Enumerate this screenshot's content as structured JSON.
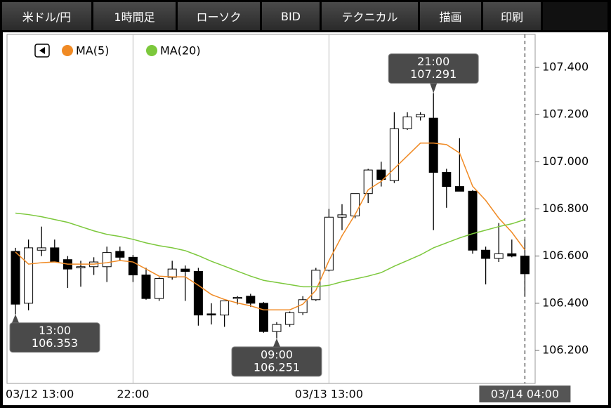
{
  "toolbar": {
    "buttons": [
      "米ドル/円",
      "1時間足",
      "ローソク",
      "BID",
      "テクニカル",
      "描画",
      "印刷"
    ]
  },
  "chart_data": {
    "type": "candlestick",
    "categories": [
      "03/12 13:00",
      null,
      null,
      null,
      null,
      null,
      null,
      null,
      null,
      "22:00",
      null,
      null,
      null,
      null,
      null,
      null,
      null,
      null,
      null,
      null,
      null,
      null,
      null,
      null,
      "03/13 13:00",
      null,
      null,
      null,
      null,
      null,
      null,
      null,
      null,
      null,
      null,
      null,
      null,
      null,
      null,
      "03/14 04:00"
    ],
    "open": [
      106.62,
      106.4,
      106.625,
      106.635,
      106.585,
      106.55,
      106.555,
      106.555,
      106.62,
      106.595,
      106.52,
      106.42,
      106.51,
      106.545,
      106.535,
      106.355,
      106.35,
      106.42,
      106.43,
      106.4,
      106.28,
      106.31,
      106.36,
      106.415,
      106.54,
      106.765,
      106.77,
      106.865,
      106.965,
      106.92,
      107.14,
      107.19,
      107.185,
      106.955,
      106.895,
      106.875,
      106.625,
      106.59,
      106.61,
      106.6
    ],
    "high": [
      106.635,
      106.67,
      106.725,
      106.67,
      106.6,
      106.58,
      106.595,
      106.64,
      106.64,
      106.605,
      106.55,
      106.51,
      106.58,
      106.56,
      106.55,
      106.4,
      106.41,
      106.43,
      106.44,
      106.405,
      106.32,
      106.365,
      106.43,
      106.55,
      106.8,
      106.82,
      106.865,
      106.97,
      107.0,
      107.21,
      107.21,
      107.21,
      107.291,
      106.97,
      107.1,
      106.88,
      106.64,
      106.74,
      106.67,
      106.67
    ],
    "low": [
      106.353,
      106.37,
      106.6,
      106.575,
      106.465,
      106.47,
      106.52,
      106.49,
      106.58,
      106.49,
      106.415,
      106.41,
      106.5,
      106.41,
      106.305,
      106.31,
      106.3,
      106.395,
      106.385,
      106.275,
      106.251,
      106.3,
      106.35,
      106.41,
      106.535,
      106.71,
      106.76,
      106.825,
      106.895,
      106.91,
      107.135,
      107.175,
      106.71,
      106.805,
      106.875,
      106.61,
      106.48,
      106.575,
      106.595,
      106.43
    ],
    "close": [
      106.396,
      106.635,
      106.635,
      106.575,
      106.545,
      106.555,
      106.575,
      106.615,
      106.595,
      106.52,
      106.42,
      106.505,
      106.545,
      106.535,
      106.35,
      106.35,
      106.41,
      106.425,
      106.4,
      106.28,
      106.31,
      106.36,
      106.415,
      106.54,
      106.765,
      106.775,
      106.865,
      106.965,
      106.925,
      107.14,
      107.19,
      107.2,
      106.955,
      106.895,
      106.875,
      106.625,
      106.59,
      106.61,
      106.6,
      106.525
    ],
    "up_color": "#ffffff",
    "down_color": "#000000",
    "series": [
      {
        "name": "MA(5)",
        "color": "#f08a24",
        "values": [
          106.617,
          106.566,
          106.572,
          106.575,
          106.566,
          106.566,
          106.566,
          106.572,
          106.581,
          106.575,
          106.545,
          106.515,
          106.512,
          106.512,
          106.476,
          106.437,
          106.416,
          106.401,
          106.389,
          106.372,
          106.372,
          106.372,
          106.396,
          106.455,
          106.581,
          106.686,
          106.776,
          106.881,
          106.917,
          106.971,
          107.025,
          107.079,
          107.079,
          107.073,
          107.037,
          106.896,
          106.836,
          106.761,
          106.701,
          106.626
        ]
      },
      {
        "name": "MA(20)",
        "color": "#7cc83c",
        "values": [
          106.782,
          106.776,
          106.767,
          106.755,
          106.743,
          106.725,
          106.707,
          106.692,
          106.683,
          106.671,
          106.656,
          106.644,
          106.635,
          106.623,
          106.602,
          106.578,
          106.557,
          106.536,
          106.515,
          106.497,
          106.488,
          106.479,
          106.47,
          106.47,
          106.476,
          106.491,
          106.503,
          106.515,
          106.53,
          106.557,
          106.581,
          106.605,
          106.635,
          106.656,
          106.677,
          106.695,
          106.71,
          106.725,
          106.737,
          106.755
        ]
      }
    ],
    "ylim": [
      106.06,
      107.54
    ],
    "yticks": [
      {
        "value": 106.2,
        "label": "106.200"
      },
      {
        "value": 106.4,
        "label": "106.400"
      },
      {
        "value": 106.6,
        "label": "106.600"
      },
      {
        "value": 106.8,
        "label": "106.800"
      },
      {
        "value": 107.0,
        "label": "107.000"
      },
      {
        "value": 107.2,
        "label": "107.200"
      },
      {
        "value": 107.4,
        "label": "107.400"
      }
    ],
    "annotations": [
      {
        "label": "13:00",
        "value": 106.353
      },
      {
        "label": "09:00",
        "value": 106.251
      },
      {
        "label": "21:00",
        "value": 107.291
      }
    ]
  }
}
